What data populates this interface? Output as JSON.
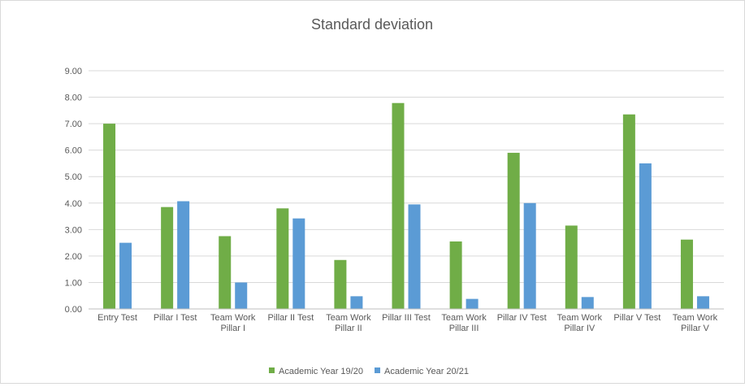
{
  "chart_data": {
    "type": "bar",
    "title": "Standard deviation",
    "xlabel": "",
    "ylabel": "",
    "ylim": [
      0,
      9
    ],
    "y_ticks": [
      "0.00",
      "1.00",
      "2.00",
      "3.00",
      "4.00",
      "5.00",
      "6.00",
      "7.00",
      "8.00",
      "9.00"
    ],
    "grid": true,
    "legend_position": "bottom",
    "categories": [
      [
        "Entry Test"
      ],
      [
        "Pillar I Test"
      ],
      [
        "Team Work",
        "Pillar I"
      ],
      [
        "Pillar II Test"
      ],
      [
        "Team Work",
        "Pillar II"
      ],
      [
        "Pillar III Test"
      ],
      [
        "Team Work",
        "Pillar III"
      ],
      [
        "Pillar IV Test"
      ],
      [
        "Team Work",
        "Pillar IV"
      ],
      [
        "Pillar V Test"
      ],
      [
        "Team Work",
        "Pillar V"
      ]
    ],
    "series": [
      {
        "name": "Academic Year 19/20",
        "color": "#70ad47",
        "values": [
          7.0,
          3.85,
          2.75,
          3.8,
          1.85,
          7.78,
          2.55,
          5.9,
          3.15,
          7.35,
          2.62
        ]
      },
      {
        "name": "Academic Year 20/21",
        "color": "#5b9bd5",
        "values": [
          2.5,
          4.07,
          1.0,
          3.42,
          0.48,
          3.95,
          0.38,
          4.0,
          0.45,
          5.5,
          0.48
        ]
      }
    ]
  }
}
